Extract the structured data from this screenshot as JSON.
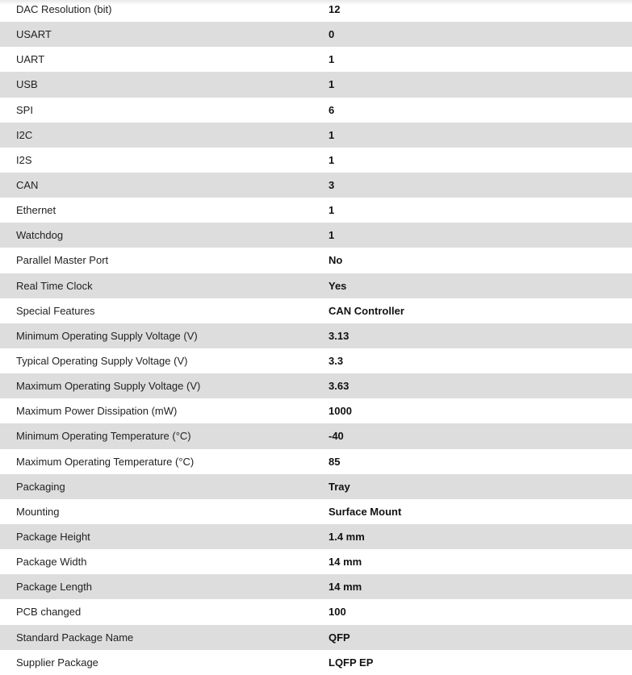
{
  "specs": [
    {
      "label": "DAC Resolution (bit)",
      "value": "12"
    },
    {
      "label": "USART",
      "value": "0"
    },
    {
      "label": "UART",
      "value": "1"
    },
    {
      "label": "USB",
      "value": "1"
    },
    {
      "label": "SPI",
      "value": "6"
    },
    {
      "label": "I2C",
      "value": "1"
    },
    {
      "label": "I2S",
      "value": "1"
    },
    {
      "label": "CAN",
      "value": "3"
    },
    {
      "label": "Ethernet",
      "value": "1"
    },
    {
      "label": "Watchdog",
      "value": "1"
    },
    {
      "label": "Parallel Master Port",
      "value": "No"
    },
    {
      "label": "Real Time Clock",
      "value": "Yes"
    },
    {
      "label": "Special Features",
      "value": "CAN Controller"
    },
    {
      "label": "Minimum Operating Supply Voltage (V)",
      "value": "3.13"
    },
    {
      "label": "Typical Operating Supply Voltage (V)",
      "value": "3.3"
    },
    {
      "label": "Maximum Operating Supply Voltage (V)",
      "value": "3.63"
    },
    {
      "label": "Maximum Power Dissipation (mW)",
      "value": "1000"
    },
    {
      "label": "Minimum Operating Temperature (°C)",
      "value": "-40"
    },
    {
      "label": "Maximum Operating Temperature (°C)",
      "value": "85"
    },
    {
      "label": "Packaging",
      "value": "Tray"
    },
    {
      "label": "Mounting",
      "value": "Surface Mount"
    },
    {
      "label": "Package Height",
      "value": "1.4 mm"
    },
    {
      "label": "Package Width",
      "value": "14 mm"
    },
    {
      "label": "Package Length",
      "value": "14 mm"
    },
    {
      "label": "PCB changed",
      "value": "100"
    },
    {
      "label": "Standard Package Name",
      "value": "QFP"
    },
    {
      "label": "Supplier Package",
      "value": "LQFP EP"
    }
  ]
}
